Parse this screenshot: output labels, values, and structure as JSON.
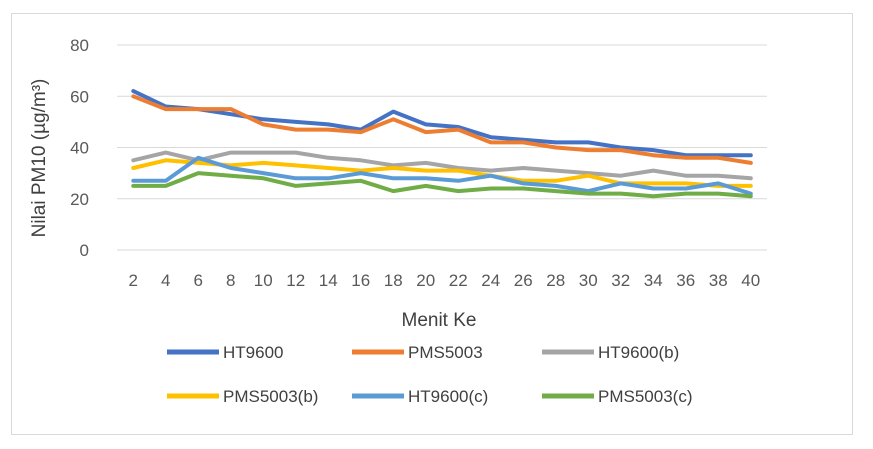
{
  "chart_data": {
    "type": "line",
    "title": "",
    "xlabel": "Menit Ke",
    "ylabel": "Nilai PM10 (µg/m³)",
    "ylim": [
      0,
      80
    ],
    "yticks": [
      0,
      20,
      40,
      60,
      80
    ],
    "grid": true,
    "legend": "bottom",
    "categories": [
      "2",
      "4",
      "6",
      "8",
      "10",
      "12",
      "14",
      "16",
      "18",
      "20",
      "22",
      "24",
      "26",
      "28",
      "30",
      "32",
      "34",
      "36",
      "38",
      "40"
    ],
    "series": [
      {
        "name": "HT9600",
        "color": "#4472c4",
        "values": [
          62,
          56,
          55,
          53,
          51,
          50,
          49,
          47,
          54,
          49,
          48,
          44,
          43,
          42,
          42,
          40,
          39,
          37,
          37,
          37
        ]
      },
      {
        "name": "PMS5003",
        "color": "#ed7d31",
        "values": [
          60,
          55,
          55,
          55,
          49,
          47,
          47,
          46,
          51,
          46,
          47,
          42,
          42,
          40,
          39,
          39,
          37,
          36,
          36,
          34
        ]
      },
      {
        "name": "HT9600(b)",
        "color": "#a5a5a5",
        "values": [
          35,
          38,
          35,
          38,
          38,
          38,
          36,
          35,
          33,
          34,
          32,
          31,
          32,
          31,
          30,
          29,
          31,
          29,
          29,
          28
        ]
      },
      {
        "name": "PMS5003(b)",
        "color": "#ffc000",
        "values": [
          32,
          35,
          34,
          33,
          34,
          33,
          32,
          31,
          32,
          31,
          31,
          29,
          27,
          27,
          29,
          26,
          26,
          26,
          25,
          25
        ]
      },
      {
        "name": "HT9600(c)",
        "color": "#5b9bd5",
        "values": [
          27,
          27,
          36,
          32,
          30,
          28,
          28,
          30,
          28,
          28,
          27,
          29,
          26,
          25,
          23,
          26,
          24,
          24,
          26,
          22
        ]
      },
      {
        "name": "PMS5003(c)",
        "color": "#70ad47",
        "values": [
          25,
          25,
          30,
          29,
          28,
          25,
          26,
          27,
          23,
          25,
          23,
          24,
          24,
          23,
          22,
          22,
          21,
          22,
          22,
          21
        ]
      }
    ]
  }
}
